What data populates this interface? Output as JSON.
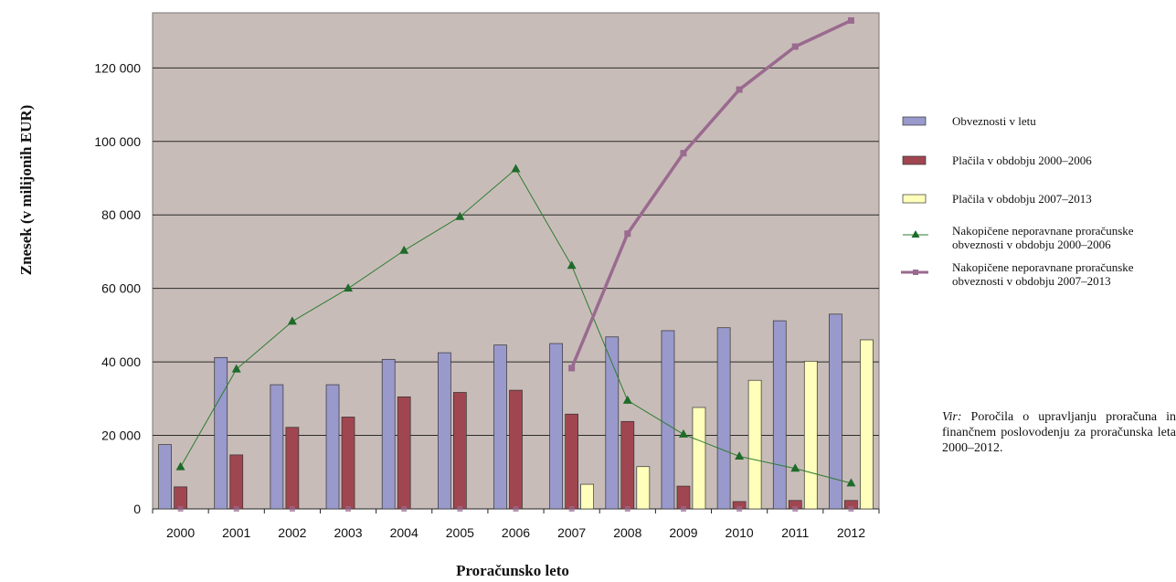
{
  "chart_data": {
    "type": "bar",
    "title": "",
    "xlabel": "Proračunsko leto",
    "ylabel": "Znesek (v milijonih EUR)",
    "ylim": [
      0,
      135000
    ],
    "yticks": [
      0,
      20000,
      40000,
      60000,
      80000,
      100000,
      120000
    ],
    "ytick_labels": [
      "0",
      "20 000",
      "40 000",
      "60 000",
      "80 000",
      "100 000",
      "120 000"
    ],
    "grid": true,
    "legend_position": "right",
    "categories": [
      "2000",
      "2001",
      "2002",
      "2003",
      "2004",
      "2005",
      "2006",
      "2007",
      "2008",
      "2009",
      "2010",
      "2011",
      "2012"
    ],
    "series": [
      {
        "name": "Obveznosti v letu",
        "kind": "bar",
        "color": "#9999cc",
        "values": [
          17500,
          41200,
          33800,
          33800,
          40700,
          42500,
          44600,
          45000,
          46800,
          48500,
          49300,
          51200,
          53000
        ]
      },
      {
        "name": "Plačila v obdobju 2000–2006",
        "kind": "bar",
        "color": "#a04650",
        "values": [
          6000,
          14700,
          22200,
          25000,
          30500,
          31700,
          32300,
          25800,
          23800,
          6200,
          2000,
          2300,
          2300
        ]
      },
      {
        "name": "Plačila v obdobju 2007–2013",
        "kind": "bar",
        "color": "#ffffbb",
        "values": [
          null,
          null,
          null,
          null,
          null,
          null,
          null,
          6700,
          11500,
          27600,
          35000,
          40200,
          46000
        ]
      },
      {
        "name": "Nakopičene neporavnane proračunske obveznosti v obdobju 2000–2006",
        "kind": "line",
        "color": "#2e7d32",
        "marker": "triangle",
        "values": [
          11400,
          38000,
          51000,
          60000,
          70300,
          79500,
          92500,
          66200,
          29500,
          20300,
          14300,
          11000,
          7000
        ]
      },
      {
        "name": "Nakopičene neporavnane proračunske obveznosti v obdobju 2007–2013",
        "kind": "line",
        "color": "#9a6a8f",
        "marker": "square",
        "values": [
          null,
          null,
          null,
          null,
          null,
          null,
          null,
          38300,
          74900,
          96800,
          114100,
          125800,
          132900
        ]
      }
    ]
  },
  "legend": {
    "items": [
      {
        "label": "Obveznosti v letu"
      },
      {
        "label": "Plačila v obdobju 2000–2006"
      },
      {
        "label": "Plačila v obdobju 2007–2013"
      },
      {
        "line1": "Nakopičene neporavnane proračunske",
        "line2": "obveznosti v obdobju 2000–2006"
      },
      {
        "line1": "Nakopičene neporavnane proračunske",
        "line2": "obveznosti v obdobju 2007–2013"
      }
    ]
  },
  "source_note": {
    "label": "Vir:",
    "text": " Poročila o upravljanju proračuna in finančnem poslovodenju za proračunska leta 2000–2012."
  },
  "colors": {
    "plot_background": "#c8bcb8",
    "gridline": "#2b2b2b"
  }
}
